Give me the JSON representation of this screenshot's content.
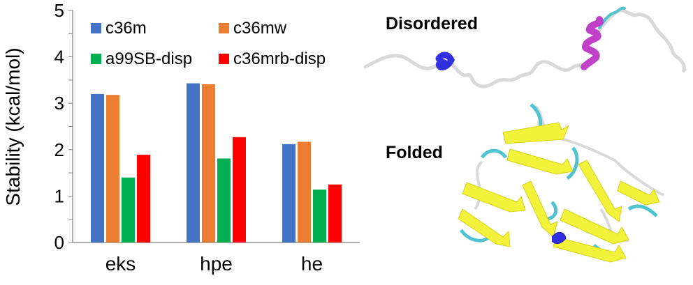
{
  "chart_data": {
    "type": "bar",
    "categories": [
      "eks",
      "hpe",
      "he"
    ],
    "series": [
      {
        "name": "c36m",
        "color": "#4472c4",
        "values": [
          3.2,
          3.43,
          2.12
        ]
      },
      {
        "name": "c36mw",
        "color": "#ed7d31",
        "values": [
          3.18,
          3.41,
          2.17
        ]
      },
      {
        "name": "a99SB-disp",
        "color": "#00b050",
        "values": [
          1.4,
          1.81,
          1.14
        ]
      },
      {
        "name": "c36mrb-disp",
        "color": "#ff0000",
        "values": [
          1.89,
          2.27,
          1.25
        ]
      }
    ],
    "ylabel": "Stability (kcal/mol)",
    "xlabel": "",
    "ylim": [
      0,
      5
    ],
    "yticks": [
      0,
      1,
      2,
      3,
      4,
      5
    ],
    "grid": false,
    "legend_position": "top, two columns"
  },
  "panels": {
    "disordered_label": "Disordered",
    "folded_label": "Folded"
  },
  "structure_colors": {
    "coil": "#d9d9d9",
    "turn": "#4fc3d0",
    "strand": "#f2f23a",
    "helix_310": "#3030e0",
    "alpha_helix": "#c040c8"
  }
}
